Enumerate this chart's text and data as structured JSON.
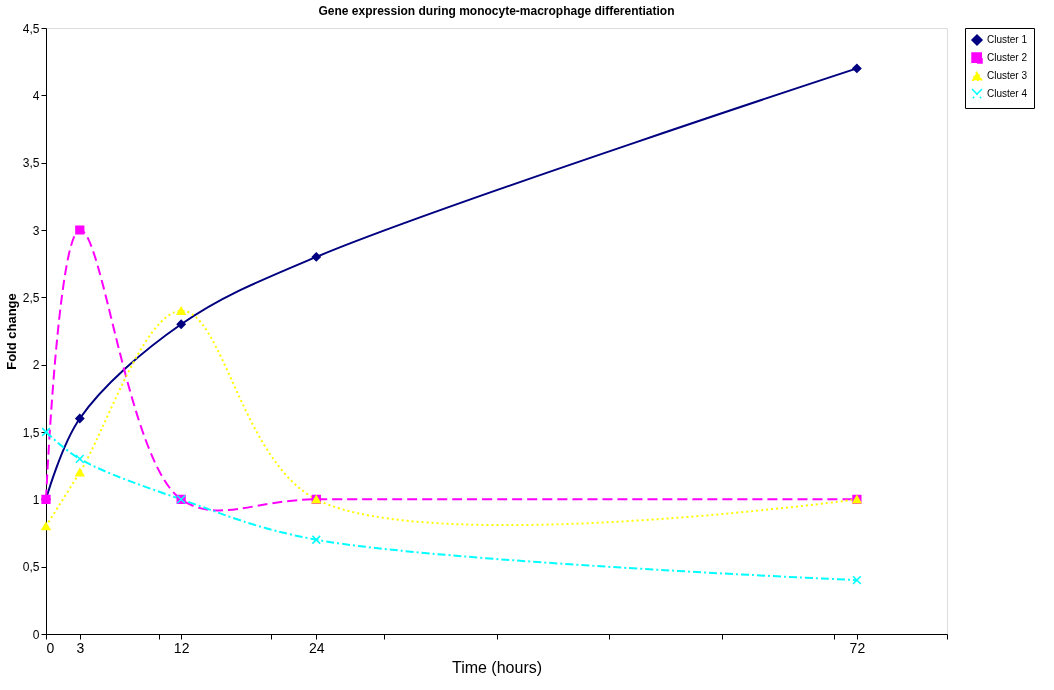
{
  "chart_data": {
    "type": "line",
    "title": "Gene expression during monocyte-macrophage differentiation",
    "xlabel": "Time (hours)",
    "ylabel": "Fold change",
    "x": [
      0,
      3,
      12,
      24,
      72
    ],
    "xlim": [
      0,
      80
    ],
    "xticks": [
      0,
      3,
      {
        "value": 10,
        "label": null
      },
      12,
      {
        "value": 20,
        "label": null
      },
      24,
      {
        "value": 30,
        "label": null
      },
      {
        "value": 40,
        "label": null
      },
      {
        "value": 50,
        "label": null
      },
      {
        "value": 60,
        "label": null
      },
      {
        "value": 70,
        "label": null
      },
      72,
      {
        "value": 80,
        "label": null
      }
    ],
    "ylim": [
      0,
      4.5
    ],
    "yticks": [
      0,
      {
        "value": 0.5,
        "label": "0,5"
      },
      1,
      {
        "value": 1.5,
        "label": "1,5"
      },
      2,
      {
        "value": 2.5,
        "label": "2,5"
      },
      3,
      {
        "value": 3.5,
        "label": "3,5"
      },
      4,
      {
        "value": 4.5,
        "label": "4,5"
      }
    ],
    "grid": false,
    "legend": "right",
    "series": [
      {
        "name": "Cluster 1",
        "color": "#000080",
        "marker": "diamond",
        "line_style": "solid",
        "values": [
          1,
          1.6,
          2.3,
          2.8,
          4.2
        ]
      },
      {
        "name": "Cluster 2",
        "color": "#ff00ff",
        "marker": "square",
        "line_style": "dashed",
        "values": [
          1,
          3,
          1,
          1,
          1
        ]
      },
      {
        "name": "Cluster 3",
        "color": "#ffff00",
        "marker": "triangle",
        "line_style": "dotted",
        "values": [
          0.8,
          1.2,
          2.4,
          1,
          1
        ]
      },
      {
        "name": "Cluster 4",
        "color": "#00ffff",
        "marker": "cross",
        "line_style": "dashdot",
        "values": [
          1.5,
          1.3,
          1,
          0.7,
          0.4
        ]
      }
    ]
  }
}
